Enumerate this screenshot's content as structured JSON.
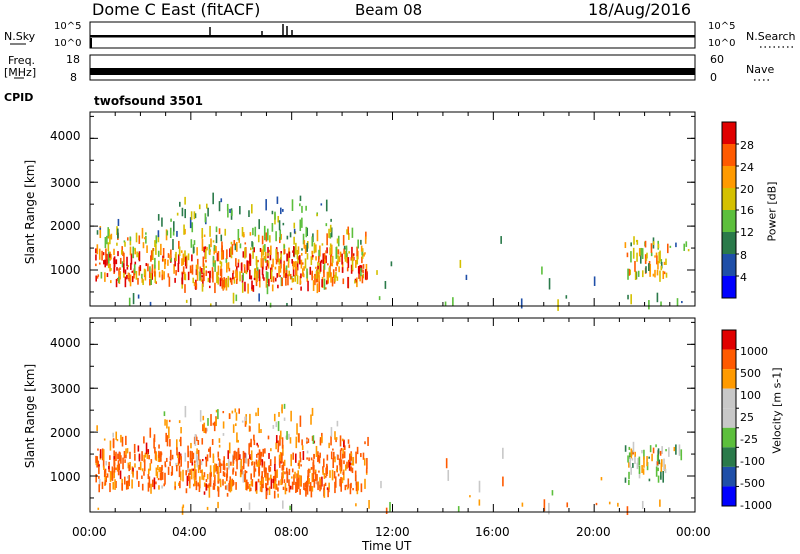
{
  "header": {
    "station": "Dome C East (fitACF)",
    "beam": "Beam 08",
    "date": "18/Aug/2016"
  },
  "sky_panel": {
    "left_label": "N.Sky",
    "left_ticks": [
      "10^5",
      "10^0"
    ],
    "right_label": "N.Search",
    "right_ticks": [
      "10^5",
      "10^0"
    ]
  },
  "freq_panel": {
    "left_label_line1": "Freq.",
    "left_label_line2": "[MHz]",
    "left_ticks": [
      "18",
      "8"
    ],
    "right_label": "Nave",
    "right_ticks": [
      "60",
      "0"
    ]
  },
  "cpid": {
    "label": "CPID",
    "value": "twofsound 3501"
  },
  "x_axis": {
    "label": "Time UT",
    "ticks": [
      "00:00",
      "04:00",
      "08:00",
      "12:00",
      "16:00",
      "20:00",
      "00:00"
    ]
  },
  "colors": {
    "power_scale": [
      "#0000ff",
      "#1f4fa8",
      "#2a7a4a",
      "#5cbf3c",
      "#d4c000",
      "#ff9a00",
      "#ff5a00",
      "#e00000"
    ],
    "velocity_scale": [
      "#e00000",
      "#ff5a00",
      "#ff9a00",
      "#c8c8c8",
      "#c8c8c8",
      "#5cbf3c",
      "#2a7a4a",
      "#1f4fa8",
      "#0000ff"
    ]
  },
  "chart_data": [
    {
      "type": "heatmap",
      "name": "power",
      "xlabel": "",
      "ylabel": "Slant Range [km]",
      "xlim": [
        0,
        24
      ],
      "ylim": [
        180,
        4600
      ],
      "yticks": [
        "1000",
        "2000",
        "3000",
        "4000"
      ],
      "colorbar": {
        "label": "Power [dB]",
        "range": [
          0,
          32
        ],
        "ticks": [
          "4",
          "8",
          "12",
          "16",
          "20",
          "24",
          "28"
        ]
      }
    },
    {
      "type": "heatmap",
      "name": "velocity",
      "xlabel": "Time UT",
      "ylabel": "Slant Range [km]",
      "xlim": [
        0,
        24
      ],
      "ylim": [
        180,
        4600
      ],
      "yticks": [
        "1000",
        "2000",
        "3000",
        "4000"
      ],
      "colorbar": {
        "label": "Velocity [m s-1]",
        "ticks": [
          "1000",
          "500",
          "100",
          "25",
          "-25",
          "-100",
          "-500",
          "-1000"
        ]
      }
    }
  ]
}
